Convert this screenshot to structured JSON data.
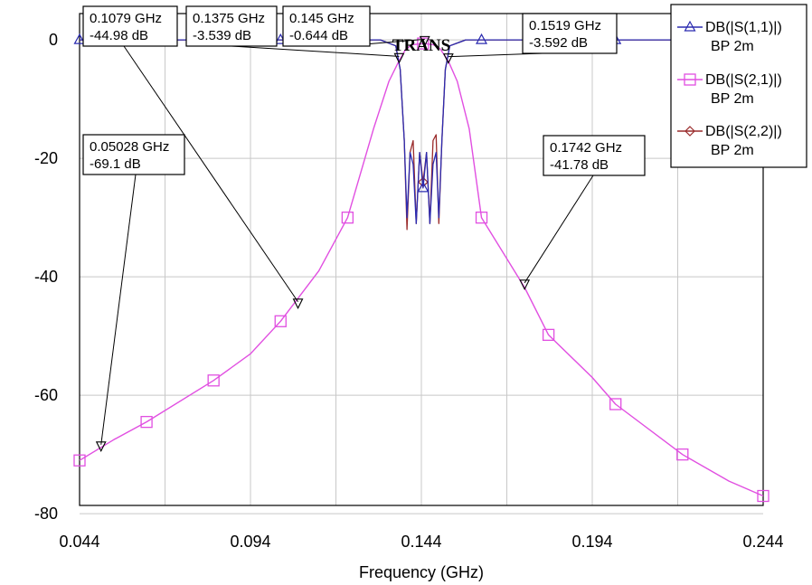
{
  "chart_data": {
    "type": "line",
    "title": "TRANS",
    "xlabel": "Frequency (GHz)",
    "ylabel": "",
    "xlim": [
      0.044,
      0.244
    ],
    "ylim": [
      -80,
      5
    ],
    "xticks": [
      0.044,
      0.094,
      0.144,
      0.194,
      0.244
    ],
    "xtick_labels": [
      "0.044",
      "0.094",
      "0.144",
      "0.194",
      "0.244"
    ],
    "yticks": [
      0,
      -20,
      -40,
      -60,
      -80
    ],
    "ytick_labels": [
      "0",
      "-20",
      "-40",
      "-60",
      "-80"
    ],
    "grid": true,
    "legend_position": "top-right",
    "series": [
      {
        "name": "DB(|S(1,1)|)",
        "subname": "BP 2m",
        "color": "#2b2bb0",
        "marker": "triangle",
        "x": [
          0.044,
          0.0636,
          0.0832,
          0.1028,
          0.1224,
          0.132,
          0.1365,
          0.1378,
          0.139,
          0.1398,
          0.1407,
          0.1416,
          0.1425,
          0.1435,
          0.1445,
          0.1455,
          0.1465,
          0.1474,
          0.1483,
          0.1491,
          0.15,
          0.151,
          0.1523,
          0.157,
          0.1616,
          0.1812,
          0.2008,
          0.2204,
          0.244
        ],
        "y": [
          0,
          0,
          0,
          0,
          0,
          0,
          -1,
          -5,
          -17,
          -30,
          -19,
          -21,
          -31,
          -19,
          -25,
          -19,
          -31,
          -21,
          -19,
          -30,
          -17,
          -5,
          -1,
          0,
          0,
          0,
          0,
          0,
          0
        ]
      },
      {
        "name": "DB(|S(2,1)|)",
        "subname": "BP 2m",
        "color": "#e14fe1",
        "marker": "square",
        "x": [
          0.044,
          0.054,
          0.0636,
          0.0832,
          0.094,
          0.1028,
          0.114,
          0.1224,
          0.13,
          0.1345,
          0.1375,
          0.1395,
          0.1415,
          0.1445,
          0.1475,
          0.1495,
          0.1519,
          0.1545,
          0.158,
          0.1616,
          0.1742,
          0.1812,
          0.194,
          0.2008,
          0.2204,
          0.234,
          0.244
        ],
        "y": [
          -71,
          -67.5,
          -64.5,
          -57.5,
          -53,
          -47.5,
          -39,
          -30,
          -15,
          -7,
          -3.5,
          -1.5,
          -0.8,
          -0.6,
          -0.8,
          -1.5,
          -3.6,
          -7,
          -15,
          -30,
          -41.8,
          -49.8,
          -57,
          -61.5,
          -70,
          -74.5,
          -77
        ]
      },
      {
        "name": "DB(|S(2,2)|)",
        "subname": "BP 2m",
        "color": "#9a2b2b",
        "marker": "diamond",
        "x": [
          0.044,
          0.132,
          0.1365,
          0.1378,
          0.139,
          0.1398,
          0.1407,
          0.1416,
          0.1425,
          0.1435,
          0.1445,
          0.1455,
          0.1465,
          0.1474,
          0.1483,
          0.1491,
          0.15,
          0.151,
          0.1523,
          0.157,
          0.244
        ],
        "y": [
          0,
          0,
          -1,
          -5,
          -17,
          -32,
          -19,
          -17,
          -31,
          -19,
          -24,
          -19,
          -31,
          -17,
          -16,
          -31,
          -17,
          -5,
          -1,
          0,
          0
        ]
      }
    ],
    "annotations": [
      {
        "freq": "0.05028 GHz",
        "value": "-69.1 dB",
        "x": 0.05028,
        "y": -69.1,
        "side": "top"
      },
      {
        "freq": "0.1079 GHz",
        "value": "-44.98 dB",
        "x": 0.1079,
        "y": -44.98,
        "side": "top"
      },
      {
        "freq": "0.1375 GHz",
        "value": "-3.539 dB",
        "x": 0.1375,
        "y": -3.539,
        "side": "top"
      },
      {
        "freq": "0.145 GHz",
        "value": "-0.644 dB",
        "x": 0.145,
        "y": -0.644,
        "side": "top"
      },
      {
        "freq": "0.1519 GHz",
        "value": "-3.592 dB",
        "x": 0.1519,
        "y": -3.592,
        "side": "top"
      },
      {
        "freq": "0.1742 GHz",
        "value": "-41.78 dB",
        "x": 0.1742,
        "y": -41.78,
        "side": "top"
      }
    ]
  }
}
